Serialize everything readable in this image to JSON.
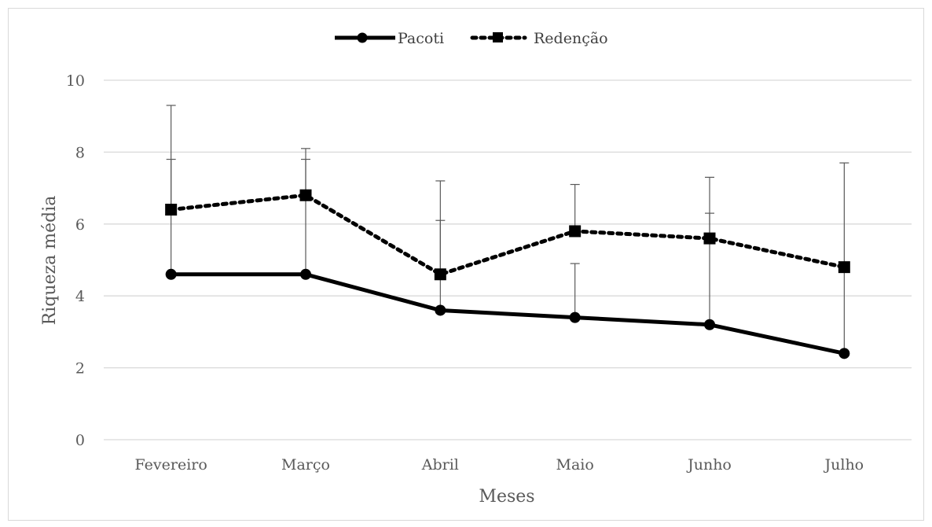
{
  "chart_data": {
    "type": "line",
    "categories": [
      "Fevereiro",
      "Março",
      "Abril",
      "Maio",
      "Junho",
      "Julho"
    ],
    "xlabel": "Meses",
    "ylabel": "Riqueza média",
    "ylim": [
      0,
      10
    ],
    "yticks": [
      0,
      2,
      4,
      6,
      8,
      10
    ],
    "grid": true,
    "legend_position": "top-center",
    "series": [
      {
        "name": "Pacoti",
        "values": [
          4.6,
          4.6,
          3.6,
          3.4,
          3.2,
          2.4
        ],
        "error_upper": [
          7.8,
          7.8,
          6.1,
          4.9,
          6.3,
          4.8
        ],
        "line_style": "solid",
        "marker": "circle",
        "color": "#000000"
      },
      {
        "name": "Redenção",
        "values": [
          6.4,
          6.8,
          4.6,
          5.8,
          5.6,
          4.8
        ],
        "error_upper": [
          9.3,
          8.1,
          7.2,
          7.1,
          7.3,
          7.7
        ],
        "line_style": "dotted",
        "marker": "square",
        "color": "#000000"
      }
    ]
  },
  "colors": {
    "grid": "#d9d9d9",
    "text": "#595959",
    "error_bar": "#595959"
  }
}
